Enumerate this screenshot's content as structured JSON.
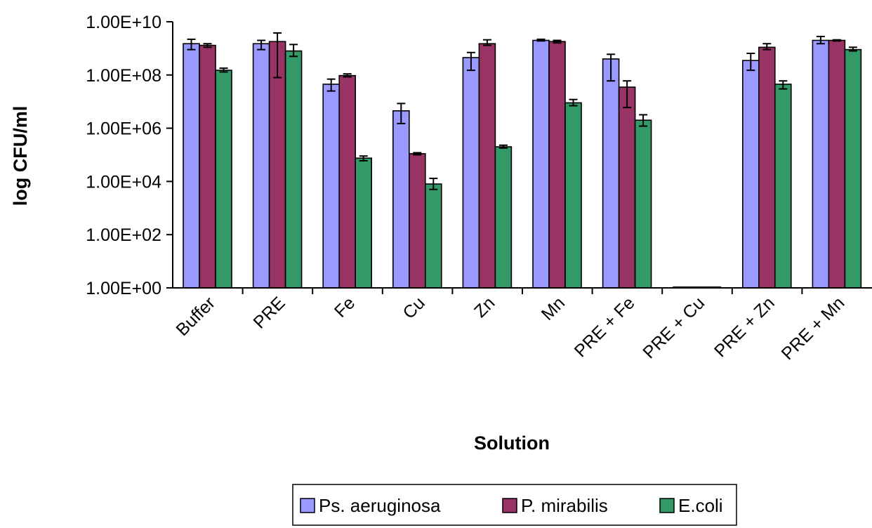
{
  "chart_data": {
    "type": "bar",
    "scale": "log10",
    "xlabel": "Solution",
    "ylabel": "log CFU/ml",
    "ylim": [
      1,
      10000000000
    ],
    "yticks": [
      "1.00E+10",
      "1.00E+08",
      "1.00E+06",
      "1.00E+04",
      "1.00E+02",
      "1.00E+00"
    ],
    "ytick_values": [
      10000000000,
      100000000,
      1000000,
      10000,
      100,
      1
    ],
    "grid": false,
    "legend_position": "bottom",
    "categories": [
      "Buffer",
      "PRE",
      "Fe",
      "Cu",
      "Zn",
      "Mn",
      "PRE + Fe",
      "PRE + Cu",
      "PRE + Zn",
      "PRE + Mn"
    ],
    "series": [
      {
        "name": "Ps. aeruginosa",
        "color": "#9999ff",
        "values": [
          1500000000,
          1500000000,
          45000000,
          4500000,
          450000000,
          2000000000,
          400000000,
          1,
          350000000,
          2000000000
        ],
        "err_upper": [
          2200000000,
          2000000000,
          70000000,
          8500000,
          700000000,
          2200000000,
          600000000,
          1,
          650000000,
          2800000000
        ],
        "err_lower": [
          900000000,
          900000000,
          25000000,
          1500000,
          150000000,
          1900000000,
          60000000,
          1,
          150000000,
          1500000000
        ]
      },
      {
        "name": "P. mirabilis",
        "color": "#993366",
        "values": [
          1300000000,
          1800000000,
          95000000,
          110000,
          1500000000,
          1800000000,
          35000000,
          1,
          1100000000,
          2000000000
        ],
        "err_upper": [
          1500000000,
          3800000000,
          110000000,
          120000,
          2100000000,
          2000000000,
          60000000,
          1,
          1500000000,
          2100000000
        ],
        "err_lower": [
          1100000000,
          80000000,
          85000000,
          100000,
          1300000000,
          1600000000,
          6000000,
          1,
          900000000,
          1900000000
        ]
      },
      {
        "name": "E.coli",
        "color": "#339966",
        "values": [
          150000000,
          800000000,
          75000,
          8000,
          200000,
          9000000,
          2000000,
          1,
          45000000,
          900000000
        ],
        "err_upper": [
          180000000,
          1400000000,
          90000,
          13000,
          230000,
          12000000,
          3200000,
          1,
          60000000,
          1100000000
        ],
        "err_lower": [
          130000000,
          500000000,
          60000,
          5000,
          180000,
          7000000,
          1200000,
          1,
          30000000,
          800000000
        ]
      }
    ]
  }
}
